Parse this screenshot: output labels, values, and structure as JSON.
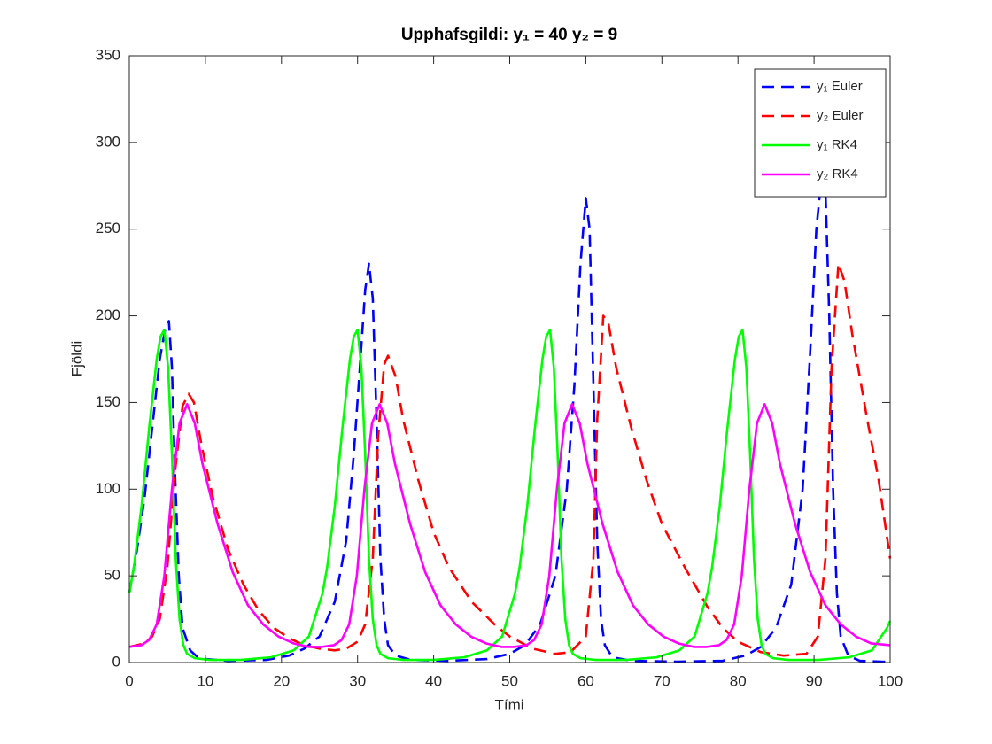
{
  "chart_data": {
    "type": "line",
    "title": "Upphafsgildi: y₁ = 40 y₂ = 9",
    "x_label": "Tími",
    "y_label": "Fjöldi",
    "xlim": [
      0,
      100
    ],
    "ylim": [
      0,
      350
    ],
    "xticks": [
      0,
      10,
      20,
      30,
      40,
      50,
      60,
      70,
      80,
      90,
      100
    ],
    "yticks": [
      0,
      50,
      100,
      150,
      200,
      250,
      300,
      350
    ],
    "legend": "top-right",
    "series": [
      {
        "name": "y₁ Euler",
        "color": "#0000ff",
        "line_style": "dashed",
        "x": [
          0,
          1,
          2,
          3,
          4,
          4.7,
          5.2,
          5.6,
          6,
          6.5,
          7,
          8,
          9,
          10,
          13,
          18,
          21,
          23,
          25,
          27,
          28.5,
          29.5,
          30.3,
          31,
          31.5,
          32,
          32.5,
          33,
          33.5,
          34,
          35,
          37,
          42,
          47,
          50,
          52,
          54,
          56,
          57.5,
          58.5,
          59.3,
          60,
          60.5,
          61,
          61.5,
          62,
          62.5,
          63.5,
          66,
          72,
          78,
          81,
          83,
          85,
          87,
          88.5,
          89.5,
          90.3,
          90.8,
          91.5,
          92,
          92.5,
          93,
          93.5,
          94.5,
          96,
          100
        ],
        "values": [
          40,
          65,
          95,
          135,
          175,
          192,
          197,
          170,
          110,
          50,
          20,
          7,
          3,
          2,
          1,
          1.5,
          4,
          8,
          15,
          35,
          70,
          120,
          170,
          215,
          230,
          210,
          140,
          60,
          25,
          10,
          4,
          1.5,
          1,
          2,
          5,
          10,
          22,
          50,
          100,
          160,
          230,
          268,
          250,
          160,
          70,
          25,
          10,
          3,
          1,
          0.5,
          1,
          4,
          9,
          20,
          45,
          100,
          180,
          250,
          272,
          272,
          200,
          100,
          40,
          15,
          4,
          1,
          0.3
        ]
      },
      {
        "name": "y₂ Euler",
        "color": "#ff0000",
        "line_style": "dashed",
        "x": [
          0,
          2,
          3,
          4,
          5,
          6,
          7,
          7.8,
          8.5,
          9.5,
          11,
          13,
          15,
          17,
          19,
          21,
          23,
          25,
          27,
          28.5,
          30,
          31,
          32,
          32.7,
          33.5,
          34,
          35,
          36,
          38,
          40,
          42,
          45,
          48,
          50,
          53,
          56,
          58,
          60,
          61,
          61.5,
          62.3,
          63,
          64,
          66,
          68,
          70,
          73,
          76,
          78,
          80,
          83,
          86,
          89,
          90.5,
          91.5,
          92.3,
          93.2,
          94,
          95,
          97,
          98.5,
          100
        ],
        "values": [
          9,
          11,
          15,
          25,
          55,
          110,
          148,
          155,
          150,
          125,
          95,
          65,
          45,
          30,
          20,
          14,
          10,
          8,
          7,
          8,
          12,
          22,
          60,
          130,
          172,
          177,
          165,
          140,
          105,
          75,
          55,
          35,
          22,
          15,
          8,
          5,
          6,
          15,
          60,
          140,
          200,
          195,
          170,
          135,
          105,
          80,
          55,
          32,
          20,
          12,
          6,
          4,
          5,
          15,
          60,
          170,
          230,
          220,
          190,
          140,
          105,
          60
        ]
      },
      {
        "name": "y₁ RK4",
        "color": "#00ff00",
        "line_style": "solid",
        "x": [
          0,
          0.6,
          1.6,
          2.6,
          3.6,
          4.1,
          4.6,
          5.1,
          5.6,
          6.1,
          6.6,
          7.1,
          7.6,
          8.6,
          10.6,
          14.6,
          18.6,
          21.6,
          23.6,
          25.4,
          26,
          27,
          28,
          29,
          29.5,
          30,
          30.5,
          31,
          31.5,
          32,
          32.5,
          33,
          34,
          36,
          40,
          44,
          47,
          49,
          50.7,
          51.3,
          52.3,
          53.3,
          54.3,
          54.8,
          55.3,
          55.8,
          56.3,
          56.8,
          57.3,
          57.8,
          58.3,
          59.3,
          61.3,
          65.3,
          69.3,
          72.3,
          74.3,
          76,
          76.6,
          77.6,
          78.6,
          79.6,
          80.1,
          80.6,
          81.1,
          81.6,
          82.1,
          82.6,
          83.1,
          83.6,
          84.6,
          86.6,
          90.6,
          94.6,
          97.6,
          99.6,
          100
        ],
        "values": [
          40,
          55,
          90,
          135,
          175,
          188,
          192,
          170,
          120,
          60,
          25,
          10,
          5,
          2.5,
          1.5,
          1.5,
          3,
          7,
          15,
          40,
          55,
          90,
          135,
          175,
          188,
          192,
          170,
          120,
          60,
          25,
          10,
          5,
          2.5,
          1.5,
          1.5,
          3,
          7,
          15,
          40,
          55,
          90,
          135,
          175,
          188,
          192,
          170,
          120,
          60,
          25,
          10,
          5,
          2.5,
          1.5,
          1.5,
          3,
          7,
          15,
          40,
          55,
          90,
          135,
          175,
          188,
          192,
          170,
          120,
          60,
          25,
          10,
          5,
          2.5,
          1.5,
          1.5,
          3,
          7,
          20,
          24
        ]
      },
      {
        "name": "y₂ RK4",
        "color": "#ff00ff",
        "line_style": "solid",
        "x": [
          0,
          1.6,
          2.6,
          3.6,
          4.6,
          5.6,
          6.6,
          7.6,
          8.6,
          9.6,
          11.6,
          13.6,
          15.6,
          17.6,
          19.6,
          21.6,
          23.6,
          25.3,
          26.9,
          27.9,
          28.9,
          29.9,
          30.9,
          31.9,
          32.9,
          33.9,
          34.9,
          36.9,
          38.9,
          40.9,
          42.9,
          44.9,
          46.9,
          48.9,
          50.6,
          52.2,
          53.2,
          54.2,
          55.2,
          56.2,
          57.2,
          58.2,
          59.2,
          60.2,
          62.2,
          64.2,
          66.2,
          68.2,
          70.2,
          72.2,
          74.2,
          75.9,
          77.5,
          78.5,
          79.5,
          80.5,
          81.5,
          82.5,
          83.5,
          84.5,
          85.5,
          87.5,
          89.5,
          91.5,
          93.5,
          95.5,
          97.5,
          100
        ],
        "values": [
          9,
          10,
          13,
          22,
          50,
          100,
          138,
          149,
          138,
          115,
          80,
          52,
          33,
          22,
          15,
          11,
          9,
          9,
          10,
          13,
          22,
          50,
          100,
          138,
          149,
          138,
          115,
          80,
          52,
          33,
          22,
          15,
          11,
          9,
          9,
          10,
          13,
          22,
          50,
          100,
          138,
          149,
          138,
          115,
          80,
          52,
          33,
          22,
          15,
          11,
          9,
          9,
          10,
          13,
          22,
          50,
          100,
          138,
          149,
          138,
          115,
          80,
          52,
          33,
          22,
          15,
          11,
          10
        ]
      }
    ]
  }
}
